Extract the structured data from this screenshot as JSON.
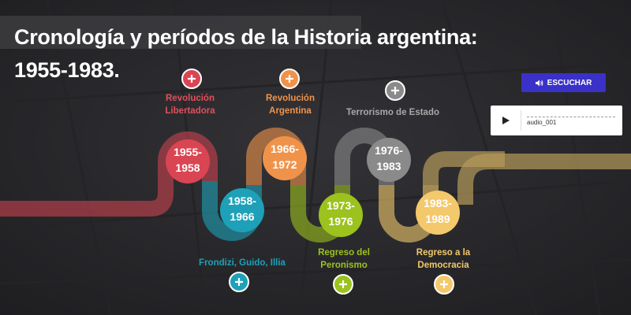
{
  "title": "Cronología y períodos de la Historia argentina: 1955-1983.",
  "listen_button": {
    "label": "ESCUCHAR",
    "icon": "speaker-icon"
  },
  "audio_player": {
    "filename": "audio_001",
    "icon": "play-icon"
  },
  "colors": {
    "background": "#2b2b2e",
    "button": "#3a32c8",
    "road_gold": "#b59a5a"
  },
  "periods": [
    {
      "id": "libertadora",
      "years": [
        "1955-",
        "1958"
      ],
      "label": [
        "Revolución",
        "Libertadora"
      ],
      "color": "#d94552",
      "label_color": "#e0505c",
      "label_pos": "top"
    },
    {
      "id": "frondizi",
      "years": [
        "1958-",
        "1966"
      ],
      "label": [
        "Frondizi, Guido, Illia"
      ],
      "color": "#1ea1b8",
      "label_color": "#1ea1b8",
      "label_pos": "bottom"
    },
    {
      "id": "argentina",
      "years": [
        "1966-",
        "1972"
      ],
      "label": [
        "Revolución",
        "Argentina"
      ],
      "color": "#f0934a",
      "label_color": "#f0934a",
      "label_pos": "top"
    },
    {
      "id": "peronismo",
      "years": [
        "1973-",
        "1976"
      ],
      "label": [
        "Regreso del",
        "Peronismo"
      ],
      "color": "#9cc21e",
      "label_color": "#9cc21e",
      "label_pos": "bottom"
    },
    {
      "id": "terrorismo",
      "years": [
        "1976-",
        "1983"
      ],
      "label": [
        "Terrorismo de Estado"
      ],
      "color": "#8a8a8a",
      "label_color": "#a8a8a8",
      "label_pos": "top"
    },
    {
      "id": "democracia",
      "years": [
        "1983-",
        "1989"
      ],
      "label": [
        "Regreso a la",
        "Democracia"
      ],
      "color": "#f3c96c",
      "label_color": "#f3c96c",
      "label_pos": "bottom"
    }
  ]
}
